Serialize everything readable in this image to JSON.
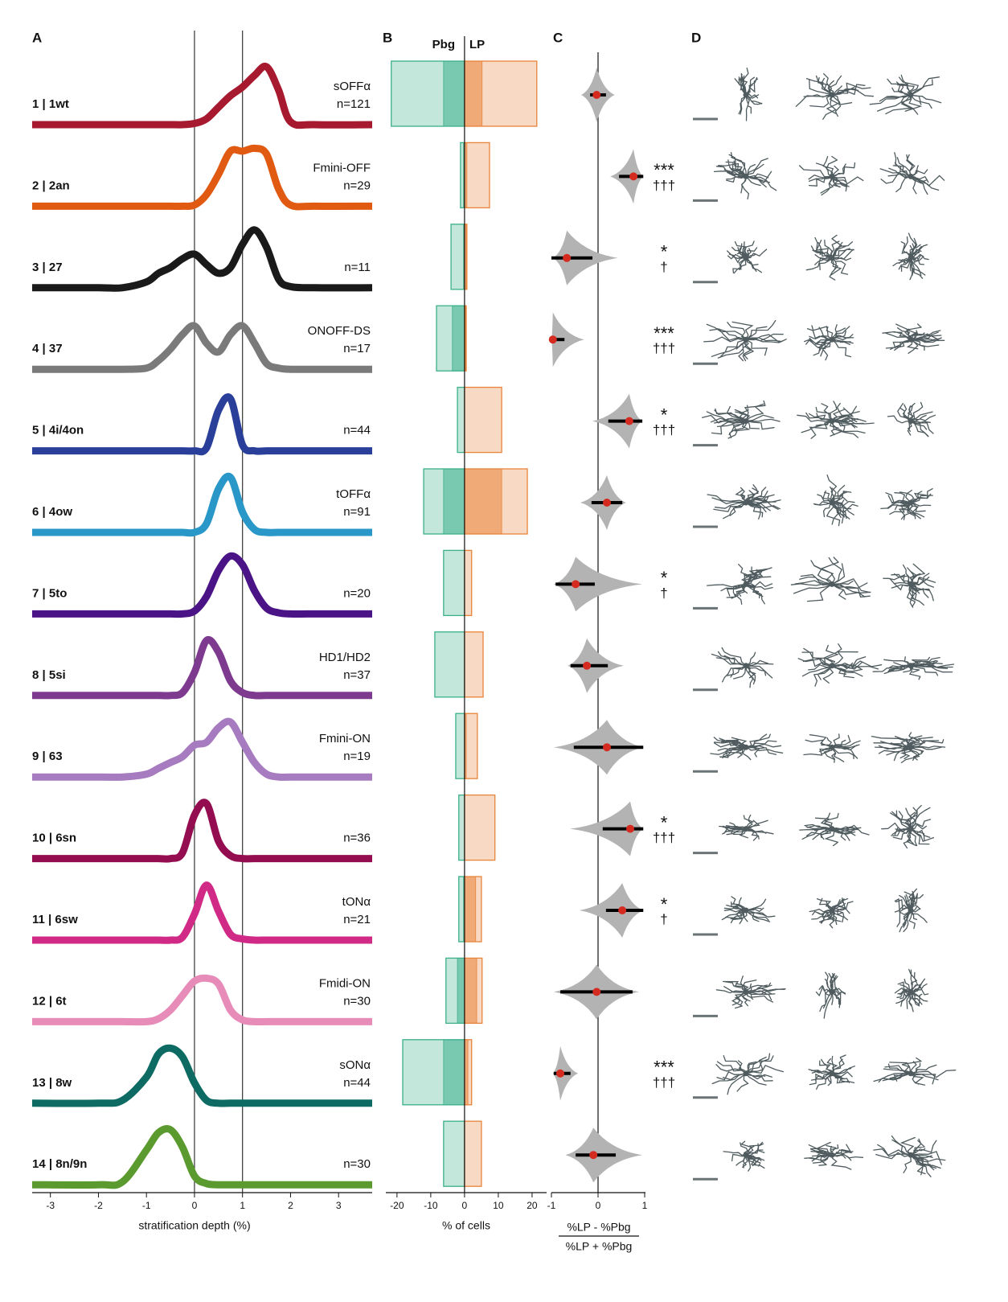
{
  "chart_data": [
    {
      "type": "line",
      "panel": "A",
      "x_label": "stratification depth (%)",
      "x": [
        -3.38,
        -2,
        -1.5,
        -1,
        -0.75,
        -0.5,
        -0.25,
        0,
        0.25,
        0.5,
        0.75,
        1,
        1.25,
        1.5,
        1.75,
        2,
        2.5,
        3.7
      ],
      "xlim": [
        -3.38,
        3.7
      ],
      "xticks": [
        -3,
        -2,
        -1,
        0,
        1,
        2,
        3
      ],
      "reference_lines": [
        0,
        1
      ],
      "series": [
        {
          "name": "1 | 1wt",
          "cell_type": "sOFFα",
          "n_label": "n=121",
          "color": "#a6192e",
          "values": [
            0,
            0,
            0,
            0,
            0,
            0,
            0,
            0.02,
            0.1,
            0.3,
            0.5,
            0.65,
            0.85,
            1.0,
            0.6,
            0.05,
            0,
            0
          ]
        },
        {
          "name": "2 | 2an",
          "cell_type": "Fmini-OFF",
          "n_label": "n=29",
          "color": "#e05a12",
          "values": [
            0,
            0,
            0,
            0,
            0,
            0,
            0,
            0.02,
            0.2,
            0.55,
            0.95,
            0.95,
            1.0,
            0.9,
            0.3,
            0.02,
            0,
            0
          ]
        },
        {
          "name": "3 | 27",
          "cell_type": null,
          "n_label": "n=11",
          "color": "#1a1a1a",
          "values": [
            0,
            0,
            0,
            0.1,
            0.25,
            0.35,
            0.5,
            0.58,
            0.4,
            0.25,
            0.35,
            0.75,
            1.0,
            0.7,
            0.15,
            0.02,
            0,
            0
          ]
        },
        {
          "name": "4 | 37",
          "cell_type": "ONOFF-DS",
          "n_label": "n=17",
          "color": "#7a7a7a",
          "values": [
            0,
            0,
            0,
            0.02,
            0.15,
            0.35,
            0.6,
            0.75,
            0.45,
            0.3,
            0.6,
            0.75,
            0.45,
            0.1,
            0.02,
            0,
            0,
            0
          ]
        },
        {
          "name": "5 | 4i/4on",
          "cell_type": null,
          "n_label": "n=44",
          "color": "#2a3f9a",
          "values": [
            0,
            0,
            0,
            0,
            0,
            0,
            0,
            0,
            0.05,
            0.7,
            0.9,
            0.1,
            0,
            0,
            0,
            0,
            0,
            0
          ]
        },
        {
          "name": "6 | 4ow",
          "cell_type": "tOFFα",
          "n_label": "n=91",
          "color": "#2a97c9",
          "values": [
            0,
            0,
            0,
            0,
            0,
            0,
            0,
            0,
            0.15,
            0.75,
            0.95,
            0.35,
            0.05,
            0,
            0,
            0,
            0,
            0
          ]
        },
        {
          "name": "7 | 5to",
          "cell_type": null,
          "n_label": "n=20",
          "color": "#4b1486",
          "values": [
            0,
            0,
            0,
            0,
            0,
            0,
            0,
            0.05,
            0.3,
            0.75,
            1.0,
            0.85,
            0.4,
            0.1,
            0.02,
            0,
            0,
            0
          ]
        },
        {
          "name": "8 | 5si",
          "cell_type": "HD1/HD2",
          "n_label": "n=37",
          "color": "#7e3a8f",
          "values": [
            0,
            0,
            0,
            0,
            0,
            0,
            0.05,
            0.4,
            0.95,
            0.75,
            0.25,
            0.05,
            0,
            0,
            0,
            0,
            0,
            0
          ]
        },
        {
          "name": "9 | 63",
          "cell_type": "Fmini-ON",
          "n_label": "n=19",
          "color": "#a77bbf",
          "values": [
            0,
            0,
            0,
            0.05,
            0.15,
            0.25,
            0.35,
            0.55,
            0.6,
            0.85,
            0.95,
            0.6,
            0.25,
            0.05,
            0,
            0,
            0,
            0
          ]
        },
        {
          "name": "10 | 6sn",
          "cell_type": null,
          "n_label": "n=36",
          "color": "#930d50",
          "values": [
            0,
            0,
            0,
            0,
            0,
            0,
            0.1,
            0.75,
            0.95,
            0.3,
            0.05,
            0,
            0,
            0,
            0,
            0,
            0,
            0
          ]
        },
        {
          "name": "11 | 6sw",
          "cell_type": "tONα",
          "n_label": "n=21",
          "color": "#d02a86",
          "values": [
            0,
            0,
            0,
            0,
            0,
            0,
            0.05,
            0.45,
            0.95,
            0.5,
            0.1,
            0.02,
            0,
            0,
            0,
            0,
            0,
            0
          ]
        },
        {
          "name": "12 | 6t",
          "cell_type": "Fmidi-ON",
          "n_label": "n=30",
          "color": "#e78bb9",
          "values": [
            0,
            0,
            0,
            0,
            0.05,
            0.2,
            0.45,
            0.7,
            0.75,
            0.65,
            0.2,
            0.03,
            0,
            0,
            0,
            0,
            0,
            0
          ]
        },
        {
          "name": "13 | 8w",
          "cell_type": "sONα",
          "n_label": "n=44",
          "color": "#0e6b63",
          "values": [
            0,
            0,
            0.05,
            0.45,
            0.85,
            0.95,
            0.8,
            0.35,
            0.05,
            0,
            0,
            0,
            0,
            0,
            0,
            0,
            0,
            0
          ]
        },
        {
          "name": "14 | 8n/9n",
          "cell_type": null,
          "n_label": "n=30",
          "color": "#5a9a2e",
          "values": [
            0,
            0,
            0.05,
            0.6,
            0.9,
            0.95,
            0.65,
            0.15,
            0.02,
            0,
            0,
            0,
            0,
            0,
            0,
            0,
            0,
            0
          ]
        }
      ]
    },
    {
      "type": "bar",
      "panel": "B",
      "x_label": "% of cells",
      "xlim": [
        -23.3,
        24.3
      ],
      "xticks": [
        -20,
        -10,
        0,
        10,
        20
      ],
      "series": [
        {
          "name": "Pbg",
          "color": "#3bb08a",
          "values": [
            -21.7,
            -1.2,
            -4,
            -8.3,
            -2.1,
            -12.1,
            -6.2,
            -8.8,
            -2.6,
            -1.7,
            -1.7,
            -5.5,
            -18.3,
            -6.2
          ],
          "inner_values": [
            -6.2,
            -0.3,
            -0.3,
            -3.6,
            0,
            -6.2,
            0,
            0,
            0,
            0,
            -0.3,
            -2.1,
            -6.2,
            0
          ]
        },
        {
          "name": "LP",
          "color": "#e8843a",
          "values": [
            21.4,
            7.4,
            0.7,
            0.5,
            11,
            18.6,
            2.1,
            5.5,
            3.8,
            9.0,
            5.0,
            5.2,
            2.1,
            5.0
          ],
          "inner_values": [
            5.2,
            0.7,
            0.5,
            0.3,
            0,
            11,
            0,
            0,
            0.5,
            0,
            3.3,
            3.6,
            1.0,
            0
          ]
        }
      ]
    },
    {
      "type": "violin",
      "panel": "C",
      "x_label_numerator": "%LP - %Pbg",
      "x_label_denominator": "%LP + %Pbg",
      "xlim": [
        -1,
        1
      ],
      "xticks": [
        -1,
        0,
        1
      ],
      "point_color": "#d42a1f",
      "violin_color": "#b3b3b3",
      "values": [
        -0.03,
        0.76,
        -0.67,
        -0.97,
        0.67,
        0.19,
        -0.48,
        -0.24,
        0.19,
        0.69,
        0.52,
        -0.03,
        -0.81,
        -0.1
      ],
      "ci_low": [
        -0.17,
        0.45,
        -1,
        -0.97,
        0.22,
        -0.14,
        -0.91,
        -0.59,
        -0.52,
        0.1,
        0.17,
        -0.81,
        -0.95,
        -0.48
      ],
      "ci_high": [
        0.17,
        0.97,
        -0.12,
        -0.72,
        0.95,
        0.52,
        -0.07,
        0.21,
        0.97,
        0.97,
        0.97,
        0.74,
        -0.59,
        0.38
      ],
      "violin_low": [
        -0.36,
        0.26,
        -0.97,
        -1,
        -0.12,
        -0.38,
        -0.95,
        -0.65,
        -0.95,
        -0.6,
        -0.4,
        -0.95,
        -0.97,
        -0.7
      ],
      "violin_high": [
        0.36,
        0.97,
        0.43,
        -0.3,
        0.95,
        0.6,
        0.95,
        0.55,
        0.98,
        0.97,
        0.98,
        0.88,
        -0.43,
        0.95
      ],
      "stars": [
        null,
        "***",
        "*",
        "***",
        "*",
        null,
        "*",
        null,
        null,
        "*",
        "*",
        null,
        "***",
        null
      ],
      "daggers": [
        null,
        "†††",
        "†",
        "†††",
        "†††",
        null,
        "†",
        null,
        null,
        "†††",
        "†",
        null,
        "†††",
        null
      ]
    }
  ],
  "morphology": {
    "panel": "D"
  }
}
